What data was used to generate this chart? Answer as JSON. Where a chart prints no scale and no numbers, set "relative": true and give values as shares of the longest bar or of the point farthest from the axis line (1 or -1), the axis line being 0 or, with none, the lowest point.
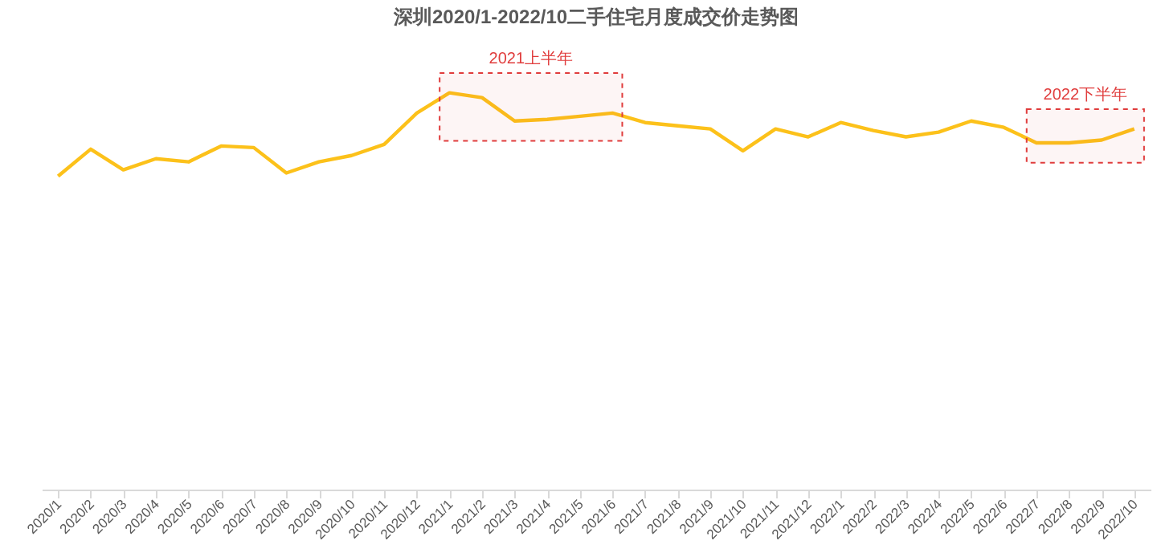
{
  "chart_data": {
    "type": "line",
    "title": "深圳2020/1-2022/10二手住宅月度成交价走势图",
    "relative": true,
    "categories": [
      "2020/1",
      "2020/2",
      "2020/3",
      "2020/4",
      "2020/5",
      "2020/6",
      "2020/7",
      "2020/8",
      "2020/9",
      "2020/10",
      "2020/11",
      "2020/12",
      "2021/1",
      "2021/2",
      "2021/3",
      "2021/4",
      "2021/5",
      "2021/6",
      "2021/7",
      "2021/8",
      "2021/9",
      "2021/10",
      "2021/11",
      "2021/12",
      "2022/1",
      "2022/2",
      "2022/3",
      "2022/4",
      "2022/5",
      "2022/6",
      "2022/7",
      "2022/8",
      "2022/9",
      "2022/10"
    ],
    "series": [
      {
        "color": "#fcc11a",
        "values": [
          0.79,
          0.858,
          0.806,
          0.834,
          0.826,
          0.866,
          0.862,
          0.798,
          0.826,
          0.842,
          0.87,
          0.949,
          1,
          0.988,
          0.929,
          0.933,
          0.941,
          0.949,
          0.925,
          0.917,
          0.909,
          0.854,
          0.909,
          0.889,
          0.925,
          0.905,
          0.889,
          0.901,
          0.929,
          0.913,
          0.874,
          0.874,
          0.881,
          0.909
        ]
      }
    ],
    "bands": [
      {
        "axis": "x",
        "from": "2021/1",
        "to": "2021/6",
        "label": "2021上半年",
        "color": "#e03c3c"
      },
      {
        "axis": "x",
        "from": "2022/7",
        "to": "2022/10",
        "label": "2022下半年",
        "color": "#e03c3c"
      }
    ],
    "grid": false,
    "marker": "none",
    "line_style": "solid"
  }
}
